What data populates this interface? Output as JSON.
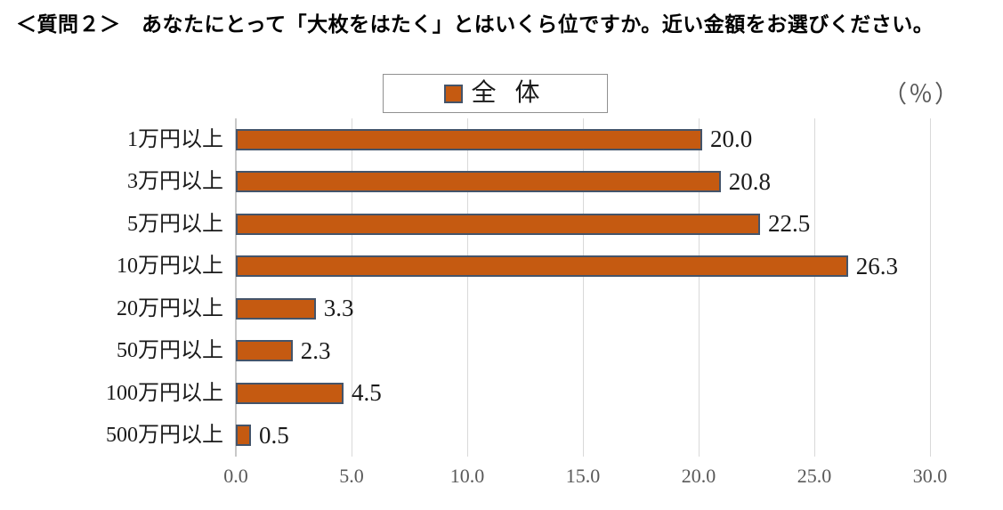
{
  "title": "＜質問２＞　あなたにとって「大枚をはたく」とはいくら位ですか。近い金額をお選びください。",
  "legend": {
    "label": "全 体"
  },
  "unit_label": "（％）",
  "chart_data": {
    "type": "bar",
    "orientation": "horizontal",
    "title": "＜質問２＞　あなたにとって「大枚をはたく」とはいくら位ですか。近い金額をお選びください。",
    "legend_entries": [
      "全体"
    ],
    "legend_position": "top-center",
    "unit": "%",
    "categories": [
      "1万円以上",
      "3万円以上",
      "5万円以上",
      "10万円以上",
      "20万円以上",
      "50万円以上",
      "100万円以上",
      "500万円以上"
    ],
    "values": [
      20.0,
      20.8,
      22.5,
      26.3,
      3.3,
      2.3,
      4.5,
      0.5
    ],
    "value_labels": [
      "20.0",
      "20.8",
      "22.5",
      "26.3",
      "3.3",
      "2.3",
      "4.5",
      "0.5"
    ],
    "x_ticks": [
      "0.0",
      "5.0",
      "10.0",
      "15.0",
      "20.0",
      "25.0",
      "30.0"
    ],
    "xlim": [
      0,
      30
    ],
    "grid": true,
    "colors": {
      "bar_fill": "#C55A11",
      "bar_border": "#44546A",
      "gridline": "#D9D9D9"
    }
  }
}
